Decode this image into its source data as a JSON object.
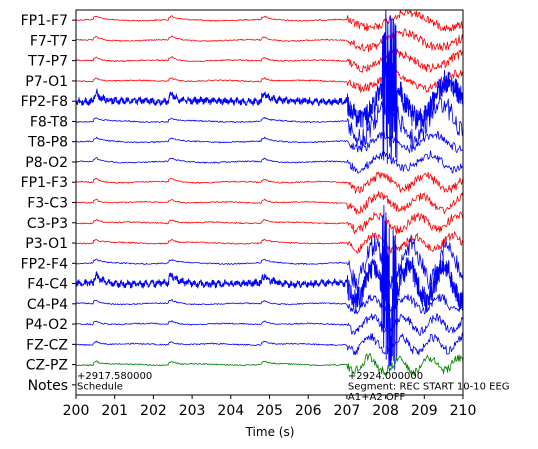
{
  "chart_data": {
    "type": "line",
    "xlabel": "Time (s)",
    "xlim": [
      200,
      210
    ],
    "x_ticks": [
      "200",
      "201",
      "202",
      "203",
      "204",
      "205",
      "206",
      "207",
      "208",
      "209",
      "210"
    ],
    "channels": [
      {
        "label": "FP1-F7",
        "color": "#ff0000"
      },
      {
        "label": "F7-T7",
        "color": "#ff0000"
      },
      {
        "label": "T7-P7",
        "color": "#ff0000"
      },
      {
        "label": "P7-O1",
        "color": "#ff0000"
      },
      {
        "label": "FP2-F8",
        "color": "#0000ff"
      },
      {
        "label": "F8-T8",
        "color": "#0000ff"
      },
      {
        "label": "T8-P8",
        "color": "#0000ff"
      },
      {
        "label": "P8-O2",
        "color": "#0000ff"
      },
      {
        "label": "FP1-F3",
        "color": "#ff0000"
      },
      {
        "label": "F3-C3",
        "color": "#ff0000"
      },
      {
        "label": "C3-P3",
        "color": "#ff0000"
      },
      {
        "label": "P3-O1",
        "color": "#ff0000"
      },
      {
        "label": "FP2-F4",
        "color": "#0000ff"
      },
      {
        "label": "F4-C4",
        "color": "#0000ff"
      },
      {
        "label": "C4-P4",
        "color": "#0000ff"
      },
      {
        "label": "P4-O2",
        "color": "#0000ff"
      },
      {
        "label": "FZ-CZ",
        "color": "#0000ff"
      },
      {
        "label": "CZ-PZ",
        "color": "#008000"
      },
      {
        "label": "Notes",
        "color": "#000000"
      }
    ],
    "artifact_events": [
      200.55,
      202.5,
      204.9
    ],
    "artifact_onset": 207.0,
    "annotations": [
      {
        "time": 200.0,
        "lines": [
          "+2917.580000",
          "Schedule"
        ]
      },
      {
        "time": 207.0,
        "lines": [
          "+2924.000000",
          "Segment: REC START 10-10 EEG",
          "A1+A2 OFF"
        ]
      }
    ]
  }
}
